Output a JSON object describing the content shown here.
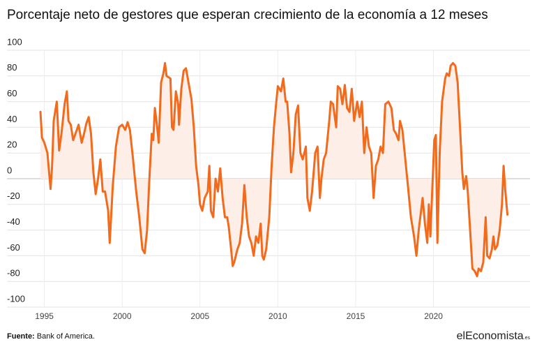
{
  "chart_data": {
    "type": "line",
    "title": "Porcentaje neto de gestores que esperan crecimiento de la economía a 12 meses",
    "source_label": "Fuente:",
    "source_text": "Bank of America.",
    "logo": "elEconomista",
    "logo_suffix": ".es",
    "x": [
      1994.75,
      1994.85,
      1995.0,
      1995.2,
      1995.4,
      1995.5,
      1995.6,
      1995.8,
      1995.95,
      1996.1,
      1996.3,
      1996.45,
      1996.55,
      1996.7,
      1996.85,
      1997.0,
      1997.2,
      1997.4,
      1997.55,
      1997.7,
      1997.85,
      1998.0,
      1998.15,
      1998.3,
      1998.45,
      1998.6,
      1998.75,
      1998.9,
      1999.1,
      1999.2,
      1999.4,
      1999.6,
      1999.8,
      2000.0,
      2000.2,
      2000.35,
      2000.5,
      2000.7,
      2000.9,
      2001.1,
      2001.3,
      2001.45,
      2001.6,
      2001.75,
      2001.9,
      2002.0,
      2002.1,
      2002.25,
      2002.35,
      2002.5,
      2002.65,
      2002.75,
      2002.85,
      2003.1,
      2003.2,
      2003.3,
      2003.45,
      2003.6,
      2003.65,
      2003.8,
      2003.95,
      2004.1,
      2004.3,
      2004.45,
      2004.6,
      2004.75,
      2004.9,
      2005.0,
      2005.15,
      2005.3,
      2005.5,
      2005.6,
      2005.7,
      2005.85,
      2006.0,
      2006.15,
      2006.3,
      2006.45,
      2006.6,
      2006.75,
      2006.85,
      2007.0,
      2007.1,
      2007.2,
      2007.4,
      2007.55,
      2007.7,
      2007.85,
      2008.0,
      2008.15,
      2008.3,
      2008.45,
      2008.6,
      2008.75,
      2008.9,
      2009.0,
      2009.1,
      2009.25,
      2009.45,
      2009.6,
      2009.75,
      2009.9,
      2010.0,
      2010.2,
      2010.35,
      2010.5,
      2010.6,
      2010.75,
      2010.85,
      2011.0,
      2011.15,
      2011.3,
      2011.45,
      2011.6,
      2011.8,
      2011.9,
      2012.05,
      2012.2,
      2012.4,
      2012.55,
      2012.7,
      2012.8,
      2012.95,
      2013.1,
      2013.3,
      2013.4,
      2013.55,
      2013.75,
      2013.85,
      2014.0,
      2014.15,
      2014.3,
      2014.45,
      2014.6,
      2014.75,
      2014.9,
      2015.1,
      2015.25,
      2015.4,
      2015.55,
      2015.7,
      2015.85,
      2016.0,
      2016.15,
      2016.3,
      2016.45,
      2016.6,
      2016.75,
      2016.9,
      2017.1,
      2017.3,
      2017.45,
      2017.6,
      2017.75,
      2017.85,
      2018.0,
      2018.15,
      2018.35,
      2018.55,
      2018.75,
      2018.9,
      2019.05,
      2019.2,
      2019.3,
      2019.45,
      2019.6,
      2019.7,
      2019.8,
      2019.95,
      2020.05,
      2020.15,
      2020.25,
      2020.4,
      2020.55,
      2020.75,
      2020.85,
      2021.0,
      2021.1,
      2021.25,
      2021.4,
      2021.55,
      2021.7,
      2021.85,
      2021.95,
      2022.1,
      2022.2,
      2022.35,
      2022.5,
      2022.65,
      2022.8,
      2022.9,
      2023.05,
      2023.2,
      2023.35,
      2023.45,
      2023.6,
      2023.75,
      2023.85,
      2023.95,
      2024.1,
      2024.25,
      2024.4,
      2024.5,
      2024.6,
      2024.75
    ],
    "series": [
      {
        "color": "#f26a1b",
        "fill": "#fdeee8",
        "values": [
          52,
          32,
          28,
          20,
          -8,
          10,
          45,
          60,
          22,
          35,
          58,
          68,
          45,
          42,
          30,
          35,
          42,
          28,
          35,
          43,
          48,
          35,
          5,
          -12,
          0,
          15,
          -10,
          -10,
          -25,
          -50,
          -5,
          25,
          40,
          42,
          38,
          44,
          38,
          15,
          -10,
          -30,
          -55,
          -58,
          -40,
          0,
          35,
          30,
          55,
          40,
          28,
          75,
          82,
          90,
          80,
          78,
          40,
          38,
          68,
          58,
          42,
          70,
          84,
          86,
          72,
          62,
          40,
          10,
          -5,
          -20,
          -25,
          -15,
          -10,
          10,
          -25,
          -30,
          0,
          -10,
          8,
          -15,
          -30,
          -30,
          -38,
          -55,
          -68,
          -65,
          -55,
          -50,
          -35,
          -5,
          -30,
          -45,
          -50,
          -60,
          -45,
          -50,
          -35,
          -60,
          -63,
          -55,
          -30,
          10,
          40,
          60,
          72,
          68,
          78,
          60,
          60,
          35,
          5,
          20,
          50,
          57,
          20,
          15,
          25,
          -15,
          -25,
          -10,
          20,
          25,
          -15,
          0,
          15,
          20,
          45,
          60,
          58,
          40,
          72,
          70,
          58,
          73,
          55,
          52,
          70,
          45,
          60,
          48,
          60,
          20,
          40,
          25,
          20,
          -15,
          10,
          15,
          25,
          20,
          58,
          60,
          55,
          38,
          35,
          30,
          45,
          38,
          20,
          -5,
          -30,
          -45,
          -60,
          -40,
          -25,
          -15,
          -35,
          -50,
          -20,
          -45,
          0,
          30,
          34,
          -50,
          20,
          60,
          78,
          82,
          80,
          88,
          90,
          88,
          75,
          40,
          5,
          -8,
          2,
          -10,
          -40,
          -70,
          -72,
          -76,
          -70,
          -72,
          -65,
          -30,
          -60,
          -62,
          -55,
          -45,
          -55,
          -52,
          -40,
          -20,
          10,
          -8,
          -28
        ]
      }
    ],
    "xlim": [
      1992.6,
      2026.2
    ],
    "xticks": [
      1995,
      2000,
      2005,
      2010,
      2015,
      2020
    ],
    "ylim": [
      -100,
      100
    ],
    "yticks": [
      100,
      80,
      60,
      40,
      20,
      0,
      -20,
      -40,
      -60,
      -80,
      -100
    ],
    "grid": true
  }
}
